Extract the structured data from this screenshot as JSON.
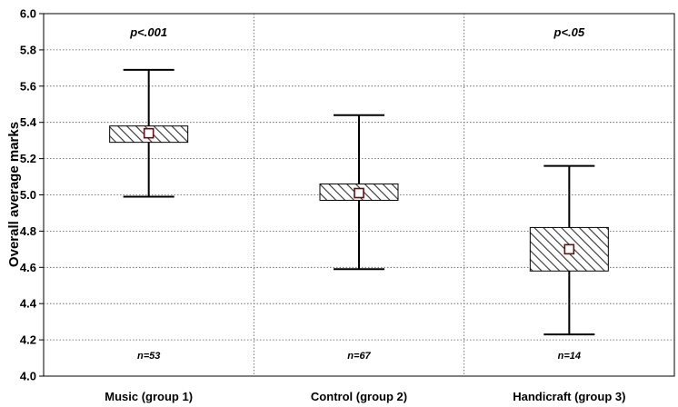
{
  "chart_data": {
    "type": "box",
    "ylabel": "Overall average marks",
    "ylim": [
      4.0,
      6.0
    ],
    "yticks": [
      "4.0",
      "4.2",
      "4.4",
      "4.6",
      "4.8",
      "5.0",
      "5.2",
      "5.4",
      "5.6",
      "5.8",
      "6.0"
    ],
    "grid": true,
    "categories": [
      "Music (group 1)",
      "Control (group 2)",
      "Handicraft (group 3)"
    ],
    "groups": [
      {
        "mean": 5.34,
        "box_low": 5.29,
        "box_high": 5.38,
        "whisker_low": 4.99,
        "whisker_high": 5.69,
        "p_label": "p<.001",
        "n_label": "n=53"
      },
      {
        "mean": 5.01,
        "box_low": 4.97,
        "box_high": 5.06,
        "whisker_low": 4.59,
        "whisker_high": 5.44,
        "p_label": "",
        "n_label": "n=67"
      },
      {
        "mean": 4.7,
        "box_low": 4.58,
        "box_high": 4.82,
        "whisker_low": 4.23,
        "whisker_high": 5.16,
        "p_label": "p<.05",
        "n_label": "n=14"
      }
    ]
  }
}
